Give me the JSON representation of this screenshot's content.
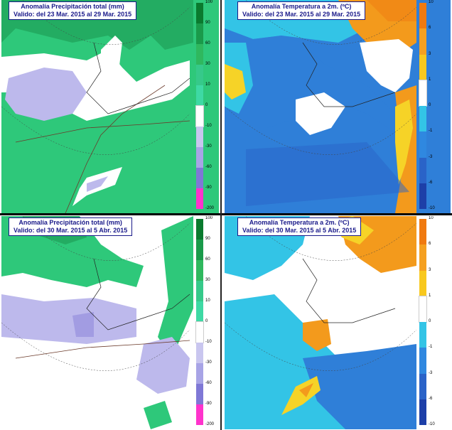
{
  "panels": [
    {
      "id": "precip-week1",
      "title_line1": "Anomalía Precipitación total (mm)",
      "title_line2": "Valido: del 23 Mar. 2015 al 29 Mar. 2015"
    },
    {
      "id": "temp-week1",
      "title_line1": "Anomalía Temperatura a 2m. (ºC)",
      "title_line2": "Valido: del 23 Mar. 2015 al 29 Mar. 2015"
    },
    {
      "id": "precip-week2",
      "title_line1": "Anomalía Precipitación total (mm)",
      "title_line2": "Valido: del 30 Mar. 2015 al 5 Abr. 2015"
    },
    {
      "id": "temp-week2",
      "title_line1": "Anomalía Temperatura a 2m. (ºC)",
      "title_line2": "Valido: del 30 Mar. 2015 al 5 Abr. 2015"
    }
  ],
  "legends": {
    "precip": {
      "labels": [
        "100",
        "90",
        "60",
        "30",
        "10",
        "0",
        "-10",
        "-30",
        "-60",
        "-90",
        "-200"
      ],
      "colors": [
        "#0a7a2e",
        "#1a9a4a",
        "#2fb85e",
        "#36c98a",
        "#3ed9a4",
        "#ffffff",
        "#c9c6ef",
        "#a8a4e6",
        "#7f78d6",
        "#ff33cc"
      ]
    },
    "temp": {
      "labels": [
        "10",
        "6",
        "3",
        "1",
        "0",
        "-1",
        "-3",
        "-6",
        "-10"
      ],
      "colors": [
        "#f07a10",
        "#f5a020",
        "#f8c81e",
        "#ffffff",
        "#33c4e6",
        "#2f88e0",
        "#2a63c8",
        "#1d3fa8"
      ]
    }
  },
  "colors": {
    "precip_green": "#2ec87a",
    "precip_dark_green": "#1d9a52",
    "precip_lavender": "#bdb9ec",
    "precip_purple": "#8f88dc",
    "temp_cyan": "#33c4e6",
    "temp_blue": "#2f7fd8",
    "temp_yellow": "#f6d327",
    "temp_orange": "#f39a1c",
    "frame_text": "#1a1a8a"
  }
}
